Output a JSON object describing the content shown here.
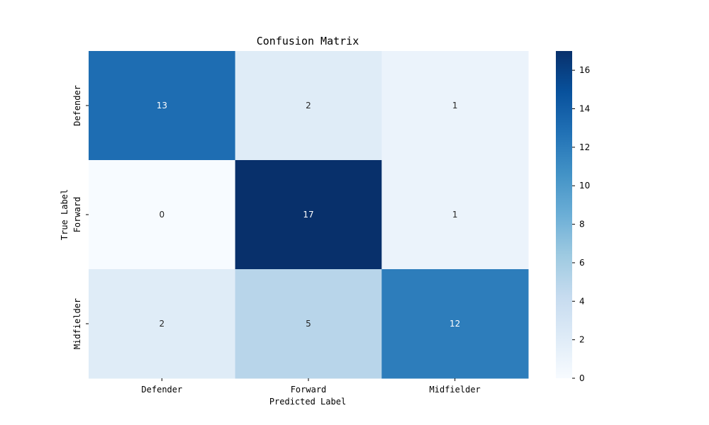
{
  "chart_data": {
    "type": "heatmap",
    "title": "Confusion Matrix",
    "xlabel": "Predicted Label",
    "ylabel": "True Label",
    "x_categories": [
      "Defender",
      "Forward",
      "Midfielder"
    ],
    "y_categories": [
      "Defender",
      "Forward",
      "Midfielder"
    ],
    "values": [
      [
        13,
        2,
        1
      ],
      [
        0,
        17,
        1
      ],
      [
        2,
        5,
        12
      ]
    ],
    "colorbar": {
      "range": [
        0,
        17
      ],
      "ticks": [
        0,
        2,
        4,
        6,
        8,
        10,
        12,
        14,
        16
      ],
      "colormap": "Blues"
    },
    "colors": {
      "low": "#f7fbff",
      "high": "#08306b"
    }
  }
}
